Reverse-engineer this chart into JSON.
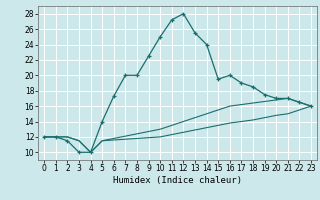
{
  "xlabel": "Humidex (Indice chaleur)",
  "bg_color": "#cce8eb",
  "grid_color": "#ffffff",
  "line_color": "#1a6e6e",
  "xlim": [
    -0.5,
    23.5
  ],
  "ylim": [
    9,
    29
  ],
  "yticks": [
    10,
    12,
    14,
    16,
    18,
    20,
    22,
    24,
    26,
    28
  ],
  "xticks": [
    0,
    1,
    2,
    3,
    4,
    5,
    6,
    7,
    8,
    9,
    10,
    11,
    12,
    13,
    14,
    15,
    16,
    17,
    18,
    19,
    20,
    21,
    22,
    23
  ],
  "line1_x": [
    0,
    1,
    2,
    3,
    4,
    5,
    6,
    7,
    8,
    9,
    10,
    11,
    12,
    13,
    14,
    15,
    16,
    17,
    18,
    19,
    20,
    21,
    22,
    23
  ],
  "line1_y": [
    12,
    12,
    11.5,
    10,
    10,
    14,
    17.3,
    20,
    20,
    22.5,
    25,
    27.2,
    28,
    25.5,
    24,
    19.5,
    20,
    19,
    18.5,
    17.5,
    17,
    17,
    16.5,
    16
  ],
  "line2_x": [
    0,
    2,
    3,
    4,
    5,
    10,
    11,
    12,
    13,
    14,
    15,
    16,
    17,
    18,
    19,
    20,
    21,
    22,
    23
  ],
  "line2_y": [
    12,
    12,
    11.5,
    10,
    11.5,
    13,
    13.5,
    14,
    14.5,
    15,
    15.5,
    16,
    16.2,
    16.4,
    16.6,
    16.8,
    17,
    16.5,
    16
  ],
  "line3_x": [
    0,
    2,
    3,
    4,
    5,
    10,
    11,
    12,
    13,
    14,
    15,
    16,
    17,
    18,
    19,
    20,
    21,
    22,
    23
  ],
  "line3_y": [
    12,
    12,
    11.5,
    10,
    11.5,
    12,
    12.3,
    12.6,
    12.9,
    13.2,
    13.5,
    13.8,
    14.0,
    14.2,
    14.5,
    14.8,
    15.0,
    15.5,
    16
  ]
}
